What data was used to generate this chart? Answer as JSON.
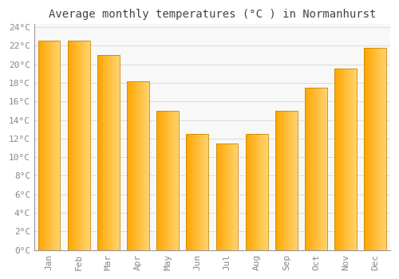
{
  "title": "Average monthly temperatures (°C ) in Normanhurst",
  "months": [
    "Jan",
    "Feb",
    "Mar",
    "Apr",
    "May",
    "Jun",
    "Jul",
    "Aug",
    "Sep",
    "Oct",
    "Nov",
    "Dec"
  ],
  "values": [
    22.5,
    22.5,
    21.0,
    18.2,
    15.0,
    12.5,
    11.5,
    12.5,
    15.0,
    17.5,
    19.5,
    21.8
  ],
  "bar_color_left": "#FFA500",
  "bar_color_right": "#FFD080",
  "bar_edge_color": "#CC8800",
  "background_color": "#FFFFFF",
  "plot_bg_color": "#F8F8F8",
  "grid_color": "#DDDDDD",
  "ytick_min": 0,
  "ytick_max": 24,
  "ytick_step": 2,
  "title_fontsize": 10,
  "tick_fontsize": 8,
  "font_family": "monospace",
  "tick_color": "#888888",
  "title_color": "#444444"
}
